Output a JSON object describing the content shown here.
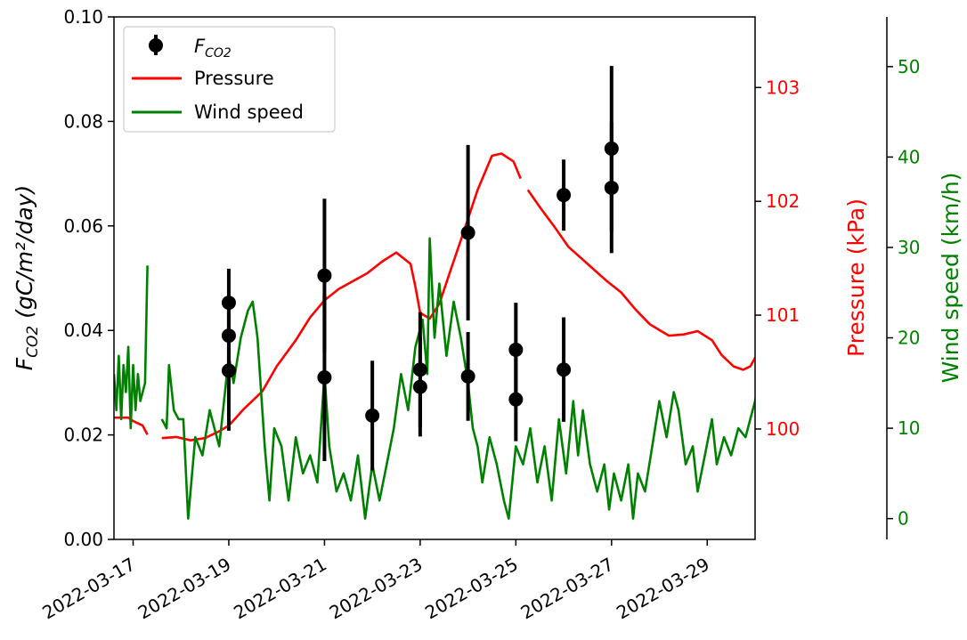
{
  "chart_data": {
    "type": "line",
    "x_axis": {
      "type": "date",
      "range": [
        "2022-03-16.6",
        "2022-03-30"
      ],
      "tick_labels": [
        "2022-03-17",
        "2022-03-19",
        "2022-03-21",
        "2022-03-23",
        "2022-03-25",
        "2022-03-27",
        "2022-03-29"
      ]
    },
    "y_left": {
      "label": "F_CO2 (gC/m²/day)",
      "label_main": "F",
      "label_sub": "CO2",
      "label_rest": " (gC/m²/day)",
      "range": [
        0,
        0.1
      ],
      "tick_labels": [
        "0.00",
        "0.02",
        "0.04",
        "0.06",
        "0.08",
        "0.10"
      ],
      "color": "#000000"
    },
    "y_right1": {
      "label": "Pressure (kPa)",
      "range": [
        99.03,
        103.62
      ],
      "tick_labels": [
        "100",
        "101",
        "102",
        "103"
      ],
      "color": "#ff0000"
    },
    "y_right2": {
      "label": "Wind speed (km/h)",
      "range": [
        -2.3,
        55.5
      ],
      "tick_labels": [
        "0",
        "10",
        "20",
        "30",
        "40",
        "50"
      ],
      "color": "#008000"
    },
    "legend": {
      "placement": "top-left",
      "entries": [
        {
          "label_main": "F",
          "label_sub": "CO2",
          "marker": "errorbar",
          "color": "#000000"
        },
        {
          "label": "Pressure",
          "marker": "line",
          "color": "#ff0000"
        },
        {
          "label": "Wind speed",
          "marker": "line",
          "color": "#008000"
        }
      ]
    },
    "series": [
      {
        "name": "F_CO2",
        "kind": "errorbar",
        "color": "#000000",
        "points": [
          {
            "x": "2022-03-19",
            "y": 0.0453,
            "err": 0.0065
          },
          {
            "x": "2022-03-19",
            "y": 0.039,
            "err": 0.0065
          },
          {
            "x": "2022-03-19",
            "y": 0.0323,
            "err": 0.0115
          },
          {
            "x": "2022-03-21",
            "y": 0.0505,
            "err": 0.0147
          },
          {
            "x": "2022-03-21",
            "y": 0.031,
            "err": 0.016
          },
          {
            "x": "2022-03-22",
            "y": 0.0237,
            "err": 0.0105
          },
          {
            "x": "2022-03-23",
            "y": 0.0325,
            "err": 0.011
          },
          {
            "x": "2022-03-23",
            "y": 0.0292,
            "err": 0.0095
          },
          {
            "x": "2022-03-24",
            "y": 0.0587,
            "err": 0.0168
          },
          {
            "x": "2022-03-24",
            "y": 0.0312,
            "err": 0.0085
          },
          {
            "x": "2022-03-25",
            "y": 0.0363,
            "err": 0.009
          },
          {
            "x": "2022-03-25",
            "y": 0.0268,
            "err": 0.008
          },
          {
            "x": "2022-03-26",
            "y": 0.0659,
            "err": 0.0068
          },
          {
            "x": "2022-03-26",
            "y": 0.0325,
            "err": 0.01
          },
          {
            "x": "2022-03-27",
            "y": 0.0748,
            "err": 0.0158
          },
          {
            "x": "2022-03-27",
            "y": 0.0673,
            "err": 0.0125
          }
        ]
      },
      {
        "name": "Pressure",
        "kind": "line",
        "axis": "y_right1",
        "color": "#ff0000",
        "segments": [
          [
            [
              "2022-03-16.6",
              100.1
            ],
            [
              "2022-03-16.9",
              100.1
            ],
            [
              "2022-03-17.0",
              100.07
            ],
            [
              "2022-03-17.2",
              100.03
            ],
            [
              "2022-03-17.3",
              99.95
            ]
          ],
          [
            [
              "2022-03-17.6",
              99.92
            ],
            [
              "2022-03-17.9",
              99.93
            ],
            [
              "2022-03-18.2",
              99.9
            ],
            [
              "2022-03-18.5",
              99.92
            ],
            [
              "2022-03-18.8",
              99.98
            ],
            [
              "2022-03-19.0",
              100.03
            ],
            [
              "2022-03-19.3",
              100.17
            ],
            [
              "2022-03-19.7",
              100.33
            ],
            [
              "2022-03-20.0",
              100.55
            ],
            [
              "2022-03-20.4",
              100.78
            ],
            [
              "2022-03-20.7",
              100.98
            ],
            [
              "2022-03-21.0",
              101.13
            ],
            [
              "2022-03-21.3",
              101.23
            ],
            [
              "2022-03-21.6",
              101.3
            ],
            [
              "2022-03-21.9",
              101.37
            ],
            [
              "2022-03-22.2",
              101.47
            ],
            [
              "2022-03-22.5",
              101.55
            ],
            [
              "2022-03-22.8",
              101.45
            ],
            [
              "2022-03-22.9",
              101.25
            ],
            [
              "2022-03-23.0",
              101.02
            ],
            [
              "2022-03-23.2",
              100.97
            ],
            [
              "2022-03-23.4",
              101.1
            ],
            [
              "2022-03-23.6",
              101.35
            ],
            [
              "2022-03-23.9",
              101.72
            ],
            [
              "2022-03-24.2",
              102.1
            ],
            [
              "2022-03-24.5",
              102.4
            ],
            [
              "2022-03-24.7",
              102.42
            ],
            [
              "2022-03-24.95",
              102.35
            ],
            [
              "2022-03-25.1",
              102.2
            ]
          ],
          [
            [
              "2022-03-25.25",
              102.1
            ],
            [
              "2022-03-25.5",
              101.95
            ],
            [
              "2022-03-25.8",
              101.78
            ],
            [
              "2022-03-26.1",
              101.6
            ],
            [
              "2022-03-26.5",
              101.45
            ],
            [
              "2022-03-26.9",
              101.3
            ],
            [
              "2022-03-27.2",
              101.2
            ],
            [
              "2022-03-27.5",
              101.05
            ],
            [
              "2022-03-27.8",
              100.92
            ],
            [
              "2022-03-28.0",
              100.87
            ],
            [
              "2022-03-28.2",
              100.82
            ],
            [
              "2022-03-28.5",
              100.83
            ],
            [
              "2022-03-28.8",
              100.86
            ],
            [
              "2022-03-29.1",
              100.78
            ],
            [
              "2022-03-29.3",
              100.65
            ],
            [
              "2022-03-29.55",
              100.55
            ],
            [
              "2022-03-29.75",
              100.52
            ],
            [
              "2022-03-29.9",
              100.55
            ],
            [
              "2022-03-30.1",
              100.7
            ],
            [
              "2022-03-30.2",
              100.9
            ]
          ]
        ]
      },
      {
        "name": "Wind speed",
        "kind": "line",
        "axis": "y_right2",
        "color": "#008000",
        "segments": [
          [
            [
              "2022-03-16.6",
              16
            ],
            [
              "2022-03-16.65",
              12
            ],
            [
              "2022-03-16.7",
              18
            ],
            [
              "2022-03-16.75",
              11
            ],
            [
              "2022-03-16.8",
              17
            ],
            [
              "2022-03-16.85",
              14
            ],
            [
              "2022-03-16.9",
              19
            ],
            [
              "2022-03-16.95",
              10
            ],
            [
              "2022-03-17.0",
              17
            ],
            [
              "2022-03-17.05",
              12
            ],
            [
              "2022-03-17.1",
              16
            ],
            [
              "2022-03-17.15",
              13
            ],
            [
              "2022-03-17.25",
              15
            ],
            [
              "2022-03-17.3",
              28
            ]
          ],
          [
            [
              "2022-03-17.6",
              11
            ],
            [
              "2022-03-17.7",
              10
            ],
            [
              "2022-03-17.75",
              17
            ],
            [
              "2022-03-17.85",
              12
            ],
            [
              "2022-03-17.95",
              11
            ],
            [
              "2022-03-18.05",
              11
            ],
            [
              "2022-03-18.15",
              0
            ],
            [
              "2022-03-18.3",
              9
            ],
            [
              "2022-03-18.45",
              7
            ],
            [
              "2022-03-18.6",
              12
            ],
            [
              "2022-03-18.7",
              10
            ],
            [
              "2022-03-18.8",
              8
            ],
            [
              "2022-03-18.9",
              13
            ],
            [
              "2022-03-19.0",
              18
            ],
            [
              "2022-03-19.1",
              15
            ],
            [
              "2022-03-19.25",
              20
            ],
            [
              "2022-03-19.4",
              23
            ],
            [
              "2022-03-19.5",
              24
            ],
            [
              "2022-03-19.6",
              20
            ],
            [
              "2022-03-19.75",
              8
            ],
            [
              "2022-03-19.85",
              2
            ],
            [
              "2022-03-19.95",
              10
            ],
            [
              "2022-03-20.1",
              8
            ],
            [
              "2022-03-20.25",
              2
            ],
            [
              "2022-03-20.4",
              9
            ],
            [
              "2022-03-20.55",
              5
            ],
            [
              "2022-03-20.7",
              7
            ],
            [
              "2022-03-20.85",
              4
            ],
            [
              "2022-03-21.0",
              16
            ],
            [
              "2022-03-21.1",
              8
            ],
            [
              "2022-03-21.25",
              3
            ],
            [
              "2022-03-21.4",
              5
            ],
            [
              "2022-03-21.55",
              2
            ],
            [
              "2022-03-21.7",
              7
            ],
            [
              "2022-03-21.85",
              0
            ],
            [
              "2022-03-22.0",
              6
            ],
            [
              "2022-03-22.15",
              2
            ],
            [
              "2022-03-22.3",
              6
            ],
            [
              "2022-03-22.45",
              10
            ],
            [
              "2022-03-22.6",
              16
            ],
            [
              "2022-03-22.75",
              12
            ],
            [
              "2022-03-22.9",
              19
            ],
            [
              "2022-03-23.05",
              22
            ],
            [
              "2022-03-23.15",
              16
            ],
            [
              "2022-03-23.2",
              31
            ],
            [
              "2022-03-23.3",
              20
            ],
            [
              "2022-03-23.4",
              26
            ],
            [
              "2022-03-23.55",
              18
            ],
            [
              "2022-03-23.7",
              24
            ],
            [
              "2022-03-23.85",
              20
            ],
            [
              "2022-03-24.0",
              15
            ],
            [
              "2022-03-24.1",
              10
            ],
            [
              "2022-03-24.2",
              8
            ],
            [
              "2022-03-24.3",
              4
            ],
            [
              "2022-03-24.45",
              9
            ],
            [
              "2022-03-24.6",
              6
            ],
            [
              "2022-03-24.75",
              2
            ],
            [
              "2022-03-24.85",
              0
            ],
            [
              "2022-03-25.0",
              8
            ],
            [
              "2022-03-25.15",
              6
            ],
            [
              "2022-03-25.3",
              10
            ],
            [
              "2022-03-25.45",
              4
            ],
            [
              "2022-03-25.6",
              8
            ],
            [
              "2022-03-25.75",
              2
            ],
            [
              "2022-03-25.9",
              11
            ],
            [
              "2022-03-26.05",
              5
            ],
            [
              "2022-03-26.2",
              13
            ],
            [
              "2022-03-26.3",
              7
            ],
            [
              "2022-03-26.4",
              12
            ],
            [
              "2022-03-26.55",
              6
            ],
            [
              "2022-03-26.7",
              3
            ],
            [
              "2022-03-26.85",
              6
            ],
            [
              "2022-03-26.95",
              1
            ],
            [
              "2022-03-27.05",
              5
            ],
            [
              "2022-03-27.2",
              2
            ],
            [
              "2022-03-27.35",
              6
            ],
            [
              "2022-03-27.45",
              0
            ],
            [
              "2022-03-27.55",
              5
            ],
            [
              "2022-03-27.7",
              3
            ],
            [
              "2022-03-27.85",
              8
            ],
            [
              "2022-03-28.0",
              13
            ],
            [
              "2022-03-28.15",
              9
            ],
            [
              "2022-03-28.3",
              14
            ],
            [
              "2022-03-28.4",
              12
            ],
            [
              "2022-03-28.55",
              6
            ],
            [
              "2022-03-28.7",
              8
            ],
            [
              "2022-03-28.8",
              3
            ],
            [
              "2022-03-28.95",
              7
            ],
            [
              "2022-03-29.1",
              11
            ],
            [
              "2022-03-29.2",
              6
            ],
            [
              "2022-03-29.35",
              9
            ],
            [
              "2022-03-29.5",
              7
            ],
            [
              "2022-03-29.65",
              10
            ],
            [
              "2022-03-29.8",
              9
            ],
            [
              "2022-03-29.9",
              11
            ],
            [
              "2022-03-30.0",
              13
            ],
            [
              "2022-03-30.1",
              16
            ],
            [
              "2022-03-30.2",
              12
            ]
          ]
        ]
      }
    ]
  }
}
